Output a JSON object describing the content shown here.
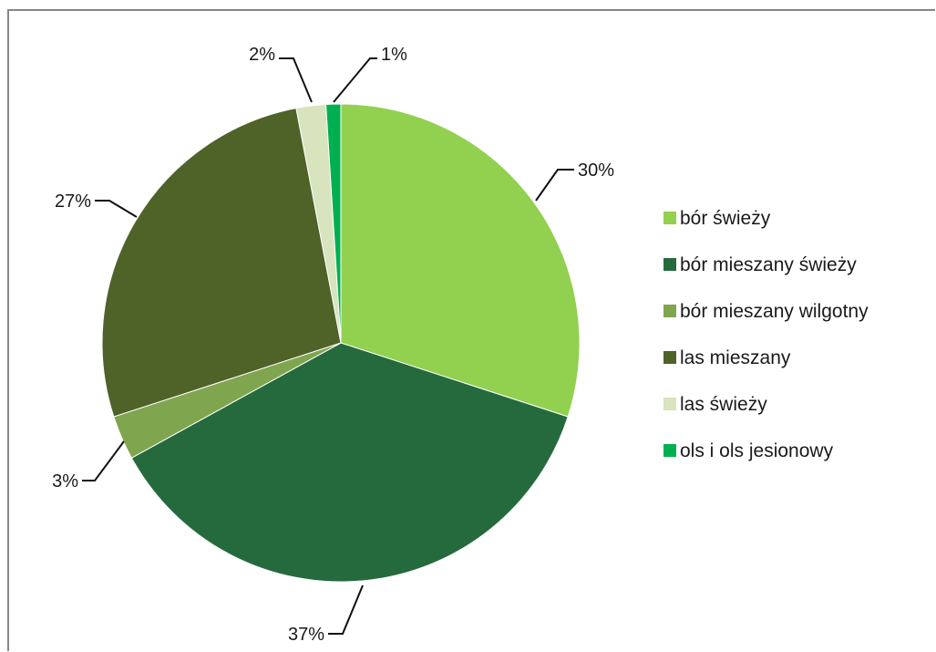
{
  "chart_data": {
    "type": "pie",
    "title": "",
    "start_angle_deg": 0,
    "direction": "clockwise",
    "legend_position": "right",
    "slices": [
      {
        "label": "bór świeży",
        "value": 30,
        "display": "30%",
        "color": "#92D050"
      },
      {
        "label": "bór mieszany świeży",
        "value": 37,
        "display": "37%",
        "color": "#256A3D"
      },
      {
        "label": "bór mieszany wilgotny",
        "value": 3,
        "display": "3%",
        "color": "#7FA64F"
      },
      {
        "label": "las mieszany",
        "value": 27,
        "display": "27%",
        "color": "#4F6228"
      },
      {
        "label": "las świeży",
        "value": 2,
        "display": "2%",
        "color": "#D7E4BD"
      },
      {
        "label": "ols i ols jesionowy",
        "value": 1,
        "display": "1%",
        "color": "#00B050"
      }
    ]
  }
}
